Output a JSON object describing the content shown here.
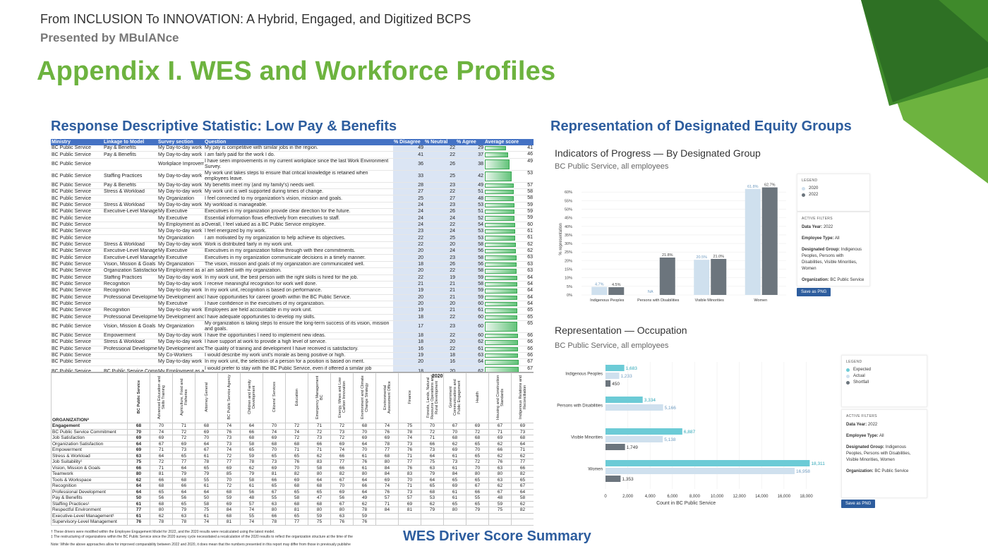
{
  "header": {
    "presentation_title": "From INCLUSION To INNOVATION: A Hybrid, Engaged, and Digitized BCPS",
    "presented_by": "Presented by MBulANce",
    "main_title": "Appendix I. WES and Workforce Profiles"
  },
  "sections": {
    "left": "Response Descriptive Statistic: Low Pay & Benefits",
    "right": "Representation of Designated Equity Groups",
    "bottom": "WES Driver Score Summary"
  },
  "response_table": {
    "columns": [
      "Ministry",
      "Linkage to Model",
      "Survey section",
      "Question",
      "% Disagree",
      "% Neutral",
      "% Agree",
      "Average score"
    ],
    "rows": [
      [
        "BC Public Service",
        "Pay & Benefits",
        "My Day-to-day work",
        "My pay is competitive with similar jobs in the region.",
        49,
        22,
        29,
        41
      ],
      [
        "BC Public Service",
        "Pay & Benefits",
        "My Day-to-day work",
        "I am fairly paid for the work I do.",
        41,
        22,
        37,
        46
      ],
      [
        "BC Public Service",
        "",
        "Workplace Improvem",
        "I have seen improvements in my current workplace since the last Work Environment Survey.",
        36,
        26,
        38,
        49
      ],
      [
        "BC Public Service",
        "Staffing Practices",
        "My Day-to-day work",
        "My work unit takes steps to ensure that critical knowledge is retained when employees leave.",
        33,
        25,
        42,
        53
      ],
      [
        "BC Public Service",
        "Pay & Benefits",
        "My Day-to-day work",
        "My benefits meet my (and my family's) needs well.",
        28,
        23,
        49,
        57
      ],
      [
        "BC Public Service",
        "Stress & Workload",
        "My Day-to-day work",
        "My work unit is well supported during times of change.",
        27,
        22,
        51,
        58
      ],
      [
        "BC Public Service",
        "",
        "My Organization",
        "I feel connected to my organization's vision, mission and goals.",
        25,
        27,
        48,
        58
      ],
      [
        "BC Public Service",
        "Stress & Workload",
        "My Day-to-day work",
        "My workload is manageable.",
        24,
        23,
        53,
        59
      ],
      [
        "BC Public Service",
        "Executive-Level Manage",
        "My Executive",
        "Executives in my organization provide clear direction for the future.",
        24,
        26,
        51,
        59
      ],
      [
        "BC Public Service",
        "",
        "My Executive",
        "Essential information flows effectively from executives to staff.",
        24,
        24,
        52,
        59
      ],
      [
        "BC Public Service",
        "",
        "My Employment as a",
        "Overall, I feel valued as a BC Public Service employee.",
        24,
        22,
        54,
        60
      ],
      [
        "BC Public Service",
        "",
        "My Day-to-day work",
        "I feel energized by my work.",
        23,
        24,
        53,
        61
      ],
      [
        "BC Public Service",
        "",
        "My Organization",
        "I am motivated by my organization to help achieve its objectives.",
        22,
        25,
        53,
        61
      ],
      [
        "BC Public Service",
        "Stress & Workload",
        "My Day-to-day work",
        "Work is distributed fairly in my work unit.",
        22,
        20,
        58,
        62
      ],
      [
        "BC Public Service",
        "Executive-Level Manage",
        "My Executive",
        "Executives in my organization follow through with their commitments.",
        20,
        24,
        56,
        62
      ],
      [
        "BC Public Service",
        "Executive-Level Manage",
        "My Executive",
        "Executives in my organization communicate decisions in a timely manner.",
        20,
        23,
        58,
        63
      ],
      [
        "BC Public Service",
        "Vision, Mission & Goals",
        "My Organization",
        "The vision, mission and goals of my organization are communicated well.",
        18,
        26,
        56,
        63
      ],
      [
        "BC Public Service",
        "Organization Satisfaction",
        "My Employment as a",
        "I am satisfied with my organization.",
        20,
        22,
        58,
        63
      ],
      [
        "BC Public Service",
        "Staffing Practices",
        "My Day-to-day work",
        "In my work unit, the best person with the right skills is hired for the job.",
        22,
        19,
        59,
        64
      ],
      [
        "BC Public Service",
        "Recognition",
        "My Day-to-day work",
        "I receive meaningful recognition for work well done.",
        21,
        21,
        58,
        64
      ],
      [
        "BC Public Service",
        "Recognition",
        "My Day-to-day work",
        "In my work unit, recognition is based on performance.",
        19,
        21,
        59,
        64
      ],
      [
        "BC Public Service",
        "Professional Developme",
        "My Development and",
        "I have opportunities for career growth within the BC Public Service.",
        20,
        21,
        59,
        64
      ],
      [
        "BC Public Service",
        "",
        "My Executive",
        "I have confidence in the executives of my organization.",
        20,
        20,
        60,
        64
      ],
      [
        "BC Public Service",
        "Recognition",
        "My Day-to-day work",
        "Employees are held accountable in my work unit.",
        19,
        21,
        61,
        65
      ],
      [
        "BC Public Service",
        "Professional Developme",
        "My Development and",
        "I have adequate opportunities to develop my skills.",
        18,
        22,
        60,
        65
      ],
      [
        "BC Public Service",
        "Vision, Mission & Goals",
        "My Organization",
        "My organization is taking steps to ensure the long-term success of its vision, mission and goals.",
        17,
        23,
        60,
        65
      ],
      [
        "BC Public Service",
        "Empowerment",
        "My Day-to-day work",
        "I have the opportunities I need to implement new ideas.",
        18,
        22,
        60,
        66
      ],
      [
        "BC Public Service",
        "Stress & Workload",
        "My Day-to-day work",
        "I have support at work to provide a high level of service.",
        18,
        20,
        62,
        66
      ],
      [
        "BC Public Service",
        "Professional Developme",
        "My Development and",
        "The quality of training and development I have received is satisfactory.",
        16,
        22,
        61,
        66
      ],
      [
        "BC Public Service",
        "",
        "My Co-Workers",
        "I would describe my work unit's morale as being positive or high.",
        19,
        18,
        63,
        66
      ],
      [
        "BC Public Service",
        "",
        "My Day-to-day work",
        "In my work unit, the selection of a person for a position is based on merit.",
        20,
        16,
        64,
        67
      ],
      [
        "BC Public Service",
        "BC Public Service Comm",
        "My Employment as a",
        "I would prefer to stay with the BC Public Service, even if offered a similar job elsewhere.",
        18,
        20,
        62,
        67
      ],
      [
        "BC Public Service",
        "Staffing Practices",
        "My Day-to-day work",
        "In my work unit, the process of selecting a person for a position is fair.",
        19,
        16,
        65,
        68
      ]
    ]
  },
  "driver_table": {
    "year": "2020",
    "org_label": "ORGANIZATION²",
    "organizations": [
      "BC Public Service",
      "Advanced Education and Skills Training",
      "Agriculture, Food and Fisheries",
      "Attorney General",
      "BC Public Service Agency",
      "Children and Family Development",
      "Citizens' Services",
      "Education",
      "Emergency Management BC",
      "Energy, Mines and Low Carbon Innovation",
      "Environment and Climate Change Strategy",
      "Environmental Assessment Office",
      "Finance",
      "Forests, Lands, Natural Resource Operations and Rural Development",
      "Government Communications and Public Engagement",
      "Health",
      "Housing and Construction Standards",
      "Indigenous Relations and Reconciliation"
    ],
    "rows": [
      {
        "label": "Engagement",
        "values": [
          "68",
          "70",
          "71",
          "68",
          "74",
          "64",
          "70",
          "72",
          "71",
          "72",
          "68",
          "74",
          "75",
          "70",
          "67",
          "69",
          "67",
          "69"
        ]
      },
      {
        "label": "BC Public Service Commitment",
        "values": [
          "70",
          "74",
          "72",
          "69",
          "76",
          "66",
          "74",
          "74",
          "72",
          "73",
          "70",
          "76",
          "78",
          "72",
          "70",
          "72",
          "71",
          "73"
        ]
      },
      {
        "label": "Job Satisfaction",
        "values": [
          "69",
          "69",
          "72",
          "70",
          "73",
          "68",
          "69",
          "72",
          "73",
          "72",
          "69",
          "69",
          "74",
          "71",
          "68",
          "68",
          "69",
          "68"
        ]
      },
      {
        "label": "Organization Satisfaction",
        "values": [
          "64",
          "67",
          "69",
          "64",
          "73",
          "58",
          "68",
          "68",
          "66",
          "69",
          "64",
          "78",
          "73",
          "66",
          "62",
          "65",
          "62",
          "64"
        ]
      },
      {
        "label": "Empowerment",
        "values": [
          "69",
          "71",
          "73",
          "67",
          "74",
          "65",
          "70",
          "71",
          "71",
          "74",
          "70",
          "77",
          "76",
          "73",
          "69",
          "70",
          "66",
          "71"
        ]
      },
      {
        "label": "Stress & Workload",
        "values": [
          "63",
          "64",
          "65",
          "61",
          "72",
          "59",
          "65",
          "65",
          "62",
          "66",
          "61",
          "68",
          "71",
          "64",
          "61",
          "65",
          "62",
          "62"
        ]
      },
      {
        "label": "Job Suitability¹",
        "values": [
          "75",
          "72",
          "77",
          "78",
          "77",
          "78",
          "73",
          "76",
          "83",
          "77",
          "76",
          "80",
          "77",
          "75",
          "73",
          "72",
          "76",
          "77"
        ]
      },
      {
        "label": "Vision, Mission & Goals",
        "values": [
          "66",
          "71",
          "64",
          "65",
          "69",
          "62",
          "69",
          "70",
          "58",
          "66",
          "61",
          "84",
          "76",
          "63",
          "61",
          "70",
          "63",
          "66"
        ]
      },
      {
        "label": "Teamwork",
        "values": [
          "80",
          "81",
          "79",
          "79",
          "85",
          "79",
          "81",
          "82",
          "80",
          "82",
          "80",
          "84",
          "83",
          "79",
          "84",
          "80",
          "80",
          "82"
        ]
      },
      {
        "label": "Tools & Workspace",
        "values": [
          "62",
          "66",
          "68",
          "55",
          "70",
          "58",
          "66",
          "69",
          "64",
          "67",
          "64",
          "69",
          "70",
          "64",
          "65",
          "65",
          "63",
          "65"
        ]
      },
      {
        "label": "Recognition",
        "values": [
          "64",
          "68",
          "66",
          "61",
          "72",
          "61",
          "65",
          "68",
          "68",
          "70",
          "66",
          "74",
          "71",
          "65",
          "69",
          "67",
          "62",
          "67"
        ]
      },
      {
        "label": "Professional Development",
        "values": [
          "64",
          "65",
          "64",
          "64",
          "68",
          "56",
          "67",
          "65",
          "65",
          "69",
          "64",
          "76",
          "73",
          "68",
          "61",
          "66",
          "67",
          "64"
        ]
      },
      {
        "label": "Pay & Benefits",
        "values": [
          "50",
          "56",
          "56",
          "50",
          "59",
          "48",
          "55",
          "58",
          "47",
          "56",
          "49",
          "57",
          "57",
          "53",
          "61",
          "55",
          "48",
          "58"
        ]
      },
      {
        "label": "Staffing Practices¹",
        "values": [
          "61",
          "68",
          "65",
          "58",
          "69",
          "57",
          "63",
          "68",
          "68",
          "67",
          "62",
          "71",
          "69",
          "62",
          "65",
          "65",
          "59",
          "62"
        ]
      },
      {
        "label": "Respectful Environment",
        "values": [
          "77",
          "80",
          "79",
          "75",
          "84",
          "74",
          "80",
          "81",
          "80",
          "80",
          "78",
          "84",
          "81",
          "79",
          "80",
          "79",
          "75",
          "82"
        ]
      },
      {
        "label": "Executive-Level Management¹",
        "values": [
          "61",
          "62",
          "63",
          "61",
          "68",
          "55",
          "66",
          "65",
          "59",
          "63",
          "59",
          "",
          "",
          "",
          "",
          "",
          "",
          ""
        ]
      },
      {
        "label": "Supervisory-Level Management",
        "values": [
          "76",
          "78",
          "78",
          "74",
          "81",
          "74",
          "78",
          "77",
          "75",
          "76",
          "76",
          "",
          "",
          "",
          "",
          "",
          "",
          ""
        ]
      }
    ],
    "notes": [
      "† These drivers were modified within the Employee Engagement Model for 2022, and the 2020 results were recalculated using the latest model.",
      "‡ The restructuring of organizations within the BC Public Service since the 2020 survey cycle necessitated a recalculation of the 2020 results to reflect the organization structure at the time of the",
      "Note: While the above approaches allow for improved comparability between 2022 and 2020, it does mean that the numbers presented in this report may differ from those in previously publishe"
    ]
  },
  "progress_chart": {
    "title": "Indicators of Progress — By Designated Group",
    "subtitle": "BC Public Service, all employees",
    "ylabel": "% representation",
    "legend_title": "LEGEND",
    "active_filters_title": "ACTIVE FILTERS",
    "filters": [
      {
        "k": "Data Year:",
        "v": "2022"
      },
      {
        "k": "Employee Type:",
        "v": "All"
      },
      {
        "k": "Designated Group:",
        "v": "Indigenous Peoples, Persons with Disabilities, Visible Minorities, Women"
      },
      {
        "k": "Organization:",
        "v": "BC Public Service"
      }
    ],
    "save_label": "Save as PNG",
    "chart_data": {
      "type": "bar",
      "categories": [
        "Indigenous Peoples",
        "Persons with Disabilities",
        "Visible Minorities",
        "Women"
      ],
      "series": [
        {
          "name": "2020",
          "color": "#cfe0ee",
          "values": [
            4.7,
            null,
            20.5,
            61.8
          ],
          "labels": [
            "4.7%",
            "NA",
            "20.5%",
            "61.8%"
          ]
        },
        {
          "name": "2022",
          "color": "#6c757d",
          "values": [
            4.5,
            21.8,
            21.0,
            62.7
          ],
          "labels": [
            "4.5%",
            "21.8%",
            "21.0%",
            "62.7%"
          ]
        }
      ],
      "yticks": [
        "0%",
        "5%",
        "10%",
        "15%",
        "20%",
        "25%",
        "30%",
        "35%",
        "40%",
        "45%",
        "50%",
        "55%",
        "60%"
      ],
      "ylim": [
        0,
        65
      ]
    }
  },
  "occupation_chart": {
    "title": "Representation — Occupation",
    "subtitle": "BC Public Service, all employees",
    "xlabel": "Count in BC Public Service",
    "legend_title": "LEGEND",
    "active_filters_title": "ACTIVE FILTERS",
    "filters": [
      {
        "k": "Data Year:",
        "v": "2022"
      },
      {
        "k": "Employee Type:",
        "v": "All"
      },
      {
        "k": "Designated Group:",
        "v": "Indigenous Peoples, Persons with Disabilities, Visible Minorities, Women"
      },
      {
        "k": "Organization:",
        "v": "BC Public Service"
      }
    ],
    "save_label": "Save as PNG",
    "chart_data": {
      "type": "bar",
      "orientation": "horizontal",
      "categories": [
        "Indigenous Peoples",
        "Persons with Disabilities",
        "Visible Minorities",
        "Women"
      ],
      "series": [
        {
          "name": "Expected",
          "color": "#6ccbd6",
          "values": [
            1683,
            3334,
            6887,
            18311
          ]
        },
        {
          "name": "Actual",
          "color": "#cfe0ee",
          "values": [
            1233,
            5166,
            5138,
            16958
          ]
        },
        {
          "name": "Shortfall",
          "color": "#6c757d",
          "values": [
            450,
            null,
            1749,
            1353
          ]
        }
      ],
      "xticks": [
        "0",
        "2,000",
        "4,000",
        "6,000",
        "8,000",
        "10,000",
        "12,000",
        "14,000",
        "16,000",
        "18,000"
      ],
      "xlim": [
        0,
        19500
      ]
    }
  }
}
